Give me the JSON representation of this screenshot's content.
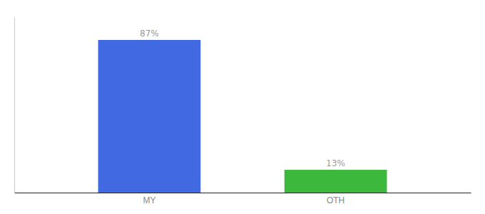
{
  "chart_data": {
    "type": "bar",
    "categories": [
      "MY",
      "OTH"
    ],
    "values": [
      87,
      13
    ],
    "value_labels": [
      "87%",
      "13%"
    ],
    "colors": [
      "#4169e1",
      "#3cb83c"
    ],
    "ylim": [
      0,
      100
    ],
    "data_labels": true,
    "tick_labels": "x",
    "grid": false
  }
}
